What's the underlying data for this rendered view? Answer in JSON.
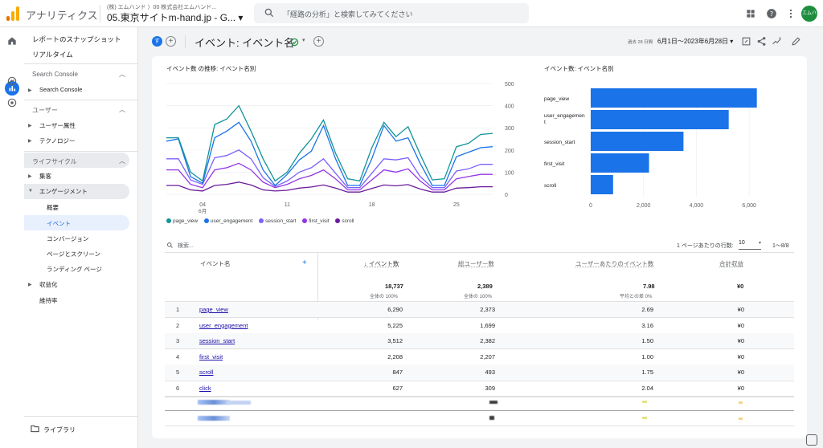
{
  "app": {
    "title": "アナリティクス",
    "breadcrumb": "(株) エムハンド 〉00 株式会社エムハンド...",
    "property": "05.東京サイトm-hand.jp - G... ▾"
  },
  "search": {
    "placeholder": "「経路の分析」と検索してみてください"
  },
  "user": {
    "initials": "エムハンド"
  },
  "sidebar": {
    "snapshot": "レポートのスナップショット",
    "realtime": "リアルタイム",
    "sc_section": "Search Console",
    "sc_item": "Search Console",
    "user_section": "ユーザー",
    "user_items": [
      "ユーザー属性",
      "テクノロジー"
    ],
    "lifecycle_section": "ライフサイクル",
    "acquisition": "集客",
    "engagement": "エンゲージメント",
    "engagement_items": [
      "概要",
      "イベント",
      "コンバージョン",
      "ページとスクリーン",
      "ランディング ページ"
    ],
    "monetization": "収益化",
    "retention": "維持率",
    "library": "ライブラリ"
  },
  "header": {
    "badge": "す",
    "title": "イベント: イベント名",
    "date_label": "過去 28 日間",
    "date_range": "6月1日～2023年6月28日 ▾"
  },
  "line_chart": {
    "title": "イベント数 の推移: イベント名別",
    "x_ticks": [
      "04\n6月",
      "11",
      "18",
      "25"
    ],
    "x_tick_main": [
      "04",
      "11",
      "18",
      "25"
    ],
    "x_tick_month": "6月",
    "y_ticks": [
      "500",
      "400",
      "300",
      "200",
      "100",
      "0"
    ]
  },
  "chart_data": [
    {
      "type": "line",
      "title": "イベント数 の推移: イベント名別",
      "x": [
        "6/1",
        "6/2",
        "6/3",
        "6/4",
        "6/5",
        "6/6",
        "6/7",
        "6/8",
        "6/9",
        "6/10",
        "6/11",
        "6/12",
        "6/13",
        "6/14",
        "6/15",
        "6/16",
        "6/17",
        "6/18",
        "6/19",
        "6/20",
        "6/21",
        "6/22",
        "6/23",
        "6/24",
        "6/25",
        "6/26",
        "6/27",
        "6/28"
      ],
      "ylim": [
        0,
        500
      ],
      "series": [
        {
          "name": "page_view",
          "color": "#12939a",
          "values": [
            255,
            255,
            100,
            60,
            315,
            340,
            400,
            285,
            160,
            60,
            100,
            185,
            250,
            335,
            185,
            70,
            60,
            210,
            325,
            260,
            305,
            180,
            65,
            70,
            215,
            230,
            270,
            275
          ]
        },
        {
          "name": "user_engagement",
          "color": "#1a73e8",
          "values": [
            240,
            250,
            80,
            50,
            255,
            285,
            325,
            240,
            110,
            40,
            90,
            155,
            195,
            310,
            160,
            40,
            40,
            160,
            310,
            240,
            255,
            140,
            40,
            40,
            170,
            190,
            210,
            215
          ]
        },
        {
          "name": "session_start",
          "color": "#7b61ff",
          "values": [
            160,
            160,
            65,
            45,
            165,
            175,
            200,
            160,
            75,
            35,
            60,
            100,
            120,
            160,
            95,
            30,
            30,
            95,
            160,
            155,
            165,
            80,
            30,
            30,
            105,
            115,
            135,
            135
          ]
        },
        {
          "name": "first_visit",
          "color": "#9334e6",
          "values": [
            110,
            110,
            45,
            30,
            110,
            120,
            140,
            110,
            55,
            30,
            45,
            70,
            85,
            110,
            70,
            20,
            20,
            65,
            110,
            100,
            115,
            60,
            20,
            20,
            70,
            80,
            90,
            90
          ]
        },
        {
          "name": "scroll",
          "color": "#6a1b9a",
          "values": [
            40,
            40,
            20,
            15,
            40,
            45,
            55,
            42,
            20,
            15,
            18,
            28,
            33,
            42,
            28,
            10,
            10,
            26,
            42,
            38,
            44,
            24,
            10,
            10,
            28,
            30,
            34,
            34
          ]
        }
      ]
    },
    {
      "type": "bar",
      "title": "イベント数: イベント名別",
      "categories": [
        "page_view",
        "user_engagement",
        "session_start",
        "first_visit",
        "scroll"
      ],
      "values": [
        6290,
        5225,
        3512,
        2208,
        847
      ],
      "xlim": [
        0,
        7000
      ],
      "x_ticks": [
        "0",
        "2,000",
        "4,000",
        "6,000"
      ],
      "color": "#1a73e8"
    }
  ],
  "bar_chart": {
    "title": "イベント数: イベント名別",
    "labels": [
      "page_view",
      "user_engagement",
      "session_start",
      "first_visit",
      "scroll"
    ],
    "x_ticks": [
      "0",
      "2,000",
      "4,000",
      "6,000"
    ]
  },
  "legend": [
    "page_view",
    "user_engagement",
    "session_start",
    "first_visit",
    "scroll"
  ],
  "table": {
    "search_placeholder": "検索...",
    "rows_per_page_label": "1 ページあたりの行数:",
    "rows_per_page": "10",
    "pagination": "1～8/8",
    "headers": [
      "イベント名",
      "↓ イベント数",
      "総ユーザー数",
      "ユーザーあたりのイベント数",
      "合計収益"
    ],
    "totals": {
      "events": "18,737",
      "users": "2,389",
      "per_user": "7.98",
      "revenue": "¥0",
      "events_sub": "全体の 100%",
      "users_sub": "全体の 100%",
      "per_user_sub": "平均との差 0%"
    },
    "rows": [
      {
        "n": "1",
        "name": "page_view",
        "events": "6,290",
        "users": "2,373",
        "per_user": "2.69",
        "revenue": "¥0"
      },
      {
        "n": "2",
        "name": "user_engagement",
        "events": "5,225",
        "users": "1,699",
        "per_user": "3.16",
        "revenue": "¥0"
      },
      {
        "n": "3",
        "name": "session_start",
        "events": "3,512",
        "users": "2,382",
        "per_user": "1.50",
        "revenue": "¥0"
      },
      {
        "n": "4",
        "name": "first_visit",
        "events": "2,208",
        "users": "2,207",
        "per_user": "1.00",
        "revenue": "¥0"
      },
      {
        "n": "5",
        "name": "scroll",
        "events": "847",
        "users": "493",
        "per_user": "1.75",
        "revenue": "¥0"
      },
      {
        "n": "6",
        "name": "click",
        "events": "627",
        "users": "309",
        "per_user": "2.04",
        "revenue": "¥0"
      }
    ]
  }
}
